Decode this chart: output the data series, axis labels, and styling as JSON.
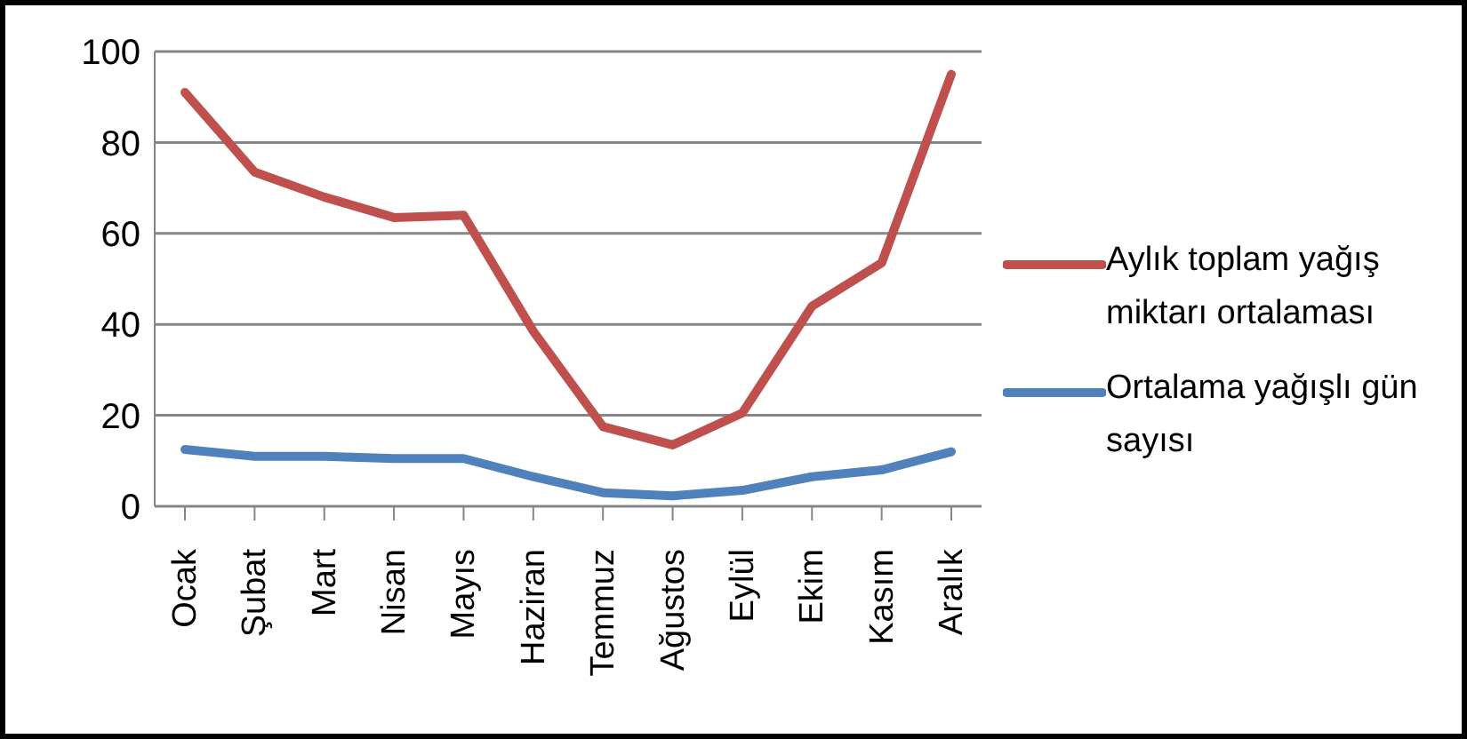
{
  "chart_data": {
    "type": "line",
    "categories": [
      "Ocak",
      "Şubat",
      "Mart",
      "Nisan",
      "Mayıs",
      "Haziran",
      "Temmuz",
      "Ağustos",
      "Eylül",
      "Ekim",
      "Kasım",
      "Aralık"
    ],
    "series": [
      {
        "name": "Aylık toplam yağış miktarı ortalaması",
        "color": "#c0504d",
        "values": [
          91,
          73.5,
          68,
          63.5,
          64,
          38.5,
          17.5,
          13.5,
          20.5,
          44,
          53.5,
          95
        ]
      },
      {
        "name": "Ortalama yağışlı gün sayısı",
        "color": "#4f81bd",
        "values": [
          12.5,
          11,
          11,
          10.5,
          10.5,
          6.5,
          3,
          2.3,
          3.5,
          6.5,
          8,
          12
        ]
      }
    ],
    "ylim": [
      0,
      100
    ],
    "yticks": [
      0,
      20,
      40,
      60,
      80,
      100
    ],
    "grid": "y",
    "legend": "right",
    "marker": "none",
    "line_style": "solid"
  }
}
